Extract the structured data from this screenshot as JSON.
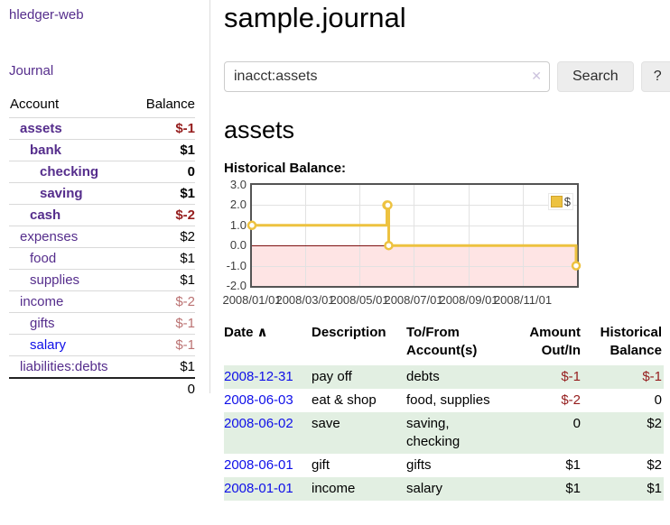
{
  "colors": {
    "link_purple": "#552d8c",
    "link_blue": "#0f0fe8",
    "negative_dark": "#951d1d",
    "negative_rose": "#bb7272",
    "row_stripe_green": "#e2efe2",
    "chart_line": "#EDC240",
    "chart_negative_region": "#fbdede",
    "chart_zero_line": "#7e1010",
    "chart_border": "#545454"
  },
  "sidebar": {
    "brand": "hledger-web",
    "nav": {
      "journal": "Journal"
    },
    "accounts_table": {
      "headers": {
        "account": "Account",
        "balance": "Balance"
      },
      "rows": [
        {
          "name": "assets",
          "indent": 1,
          "bold": true,
          "link_color": "purple",
          "balance": "$-1",
          "balance_color": "neg"
        },
        {
          "name": "bank",
          "indent": 2,
          "bold": true,
          "link_color": "purple",
          "balance": "$1",
          "balance_color": "pos"
        },
        {
          "name": "checking",
          "indent": 3,
          "bold": true,
          "link_color": "purple",
          "balance": "0",
          "balance_color": "pos"
        },
        {
          "name": "saving",
          "indent": 3,
          "bold": true,
          "link_color": "purple",
          "balance": "$1",
          "balance_color": "pos"
        },
        {
          "name": "cash",
          "indent": 2,
          "bold": true,
          "link_color": "purple",
          "balance": "$-2",
          "balance_color": "neg"
        },
        {
          "name": "expenses",
          "indent": 1,
          "bold": false,
          "link_color": "purple",
          "balance": "$2",
          "balance_color": "pos"
        },
        {
          "name": "food",
          "indent": 2,
          "bold": false,
          "link_color": "purple",
          "balance": "$1",
          "balance_color": "pos"
        },
        {
          "name": "supplies",
          "indent": 2,
          "bold": false,
          "link_color": "purple",
          "balance": "$1",
          "balance_color": "pos"
        },
        {
          "name": "income",
          "indent": 1,
          "bold": false,
          "link_color": "purple",
          "balance": "$-2",
          "balance_color": "rose"
        },
        {
          "name": "gifts",
          "indent": 2,
          "bold": false,
          "link_color": "purple",
          "balance": "$-1",
          "balance_color": "rose"
        },
        {
          "name": "salary",
          "indent": 2,
          "bold": false,
          "link_color": "blue",
          "balance": "$-1",
          "balance_color": "rose"
        },
        {
          "name": "liabilities:debts",
          "indent": 1,
          "bold": false,
          "link_color": "purple",
          "balance": "$1",
          "balance_color": "pos"
        }
      ],
      "total": "0"
    }
  },
  "main": {
    "title": "sample.journal",
    "search": {
      "value": "inacct:assets",
      "clear_icon": "✕",
      "search_button": "Search",
      "help_button": "?"
    },
    "account_heading": "assets",
    "chart_label": "Historical Balance:"
  },
  "chart_data": {
    "type": "line",
    "title": "Historical Balance",
    "series": [
      {
        "name": "$",
        "color": "#EDC240",
        "style": "steps",
        "points": [
          [
            "2008/01/01",
            1
          ],
          [
            "2008/06/01",
            2
          ],
          [
            "2008/06/02",
            2
          ],
          [
            "2008/06/03",
            0
          ],
          [
            "2008/12/31",
            -1
          ]
        ]
      }
    ],
    "xlim": [
      "2008/01/01",
      "2009/01/01"
    ],
    "ylim": [
      -2,
      3
    ],
    "yticks": [
      3.0,
      2.0,
      1.0,
      0.0,
      -1.0,
      -2.0
    ],
    "xticks": [
      "2008/01/01",
      "2008/03/01",
      "2008/05/01",
      "2008/07/01",
      "2008/09/01",
      "2008/11/01"
    ],
    "grid": true,
    "legend": {
      "label": "$",
      "position": "top-right"
    }
  },
  "register": {
    "headers": {
      "date": "Date",
      "sort_icon": "∧",
      "description": "Description",
      "accounts": "To/From Account(s)",
      "amount": "Amount Out/In",
      "balance": "Historical Balance"
    },
    "rows": [
      {
        "date": "2008-12-31",
        "description": "pay off",
        "accounts": "debts",
        "amount": "$-1",
        "amount_neg": true,
        "balance": "$-1",
        "balance_neg": true
      },
      {
        "date": "2008-06-03",
        "description": "eat & shop",
        "accounts": "food, supplies",
        "amount": "$-2",
        "amount_neg": true,
        "balance": "0",
        "balance_neg": false
      },
      {
        "date": "2008-06-02",
        "description": "save",
        "accounts": "saving, checking",
        "amount": "0",
        "amount_neg": false,
        "balance": "$2",
        "balance_neg": false
      },
      {
        "date": "2008-06-01",
        "description": "gift",
        "accounts": "gifts",
        "amount": "$1",
        "amount_neg": false,
        "balance": "$2",
        "balance_neg": false
      },
      {
        "date": "2008-01-01",
        "description": "income",
        "accounts": "salary",
        "amount": "$1",
        "amount_neg": false,
        "balance": "$1",
        "balance_neg": false
      }
    ]
  }
}
